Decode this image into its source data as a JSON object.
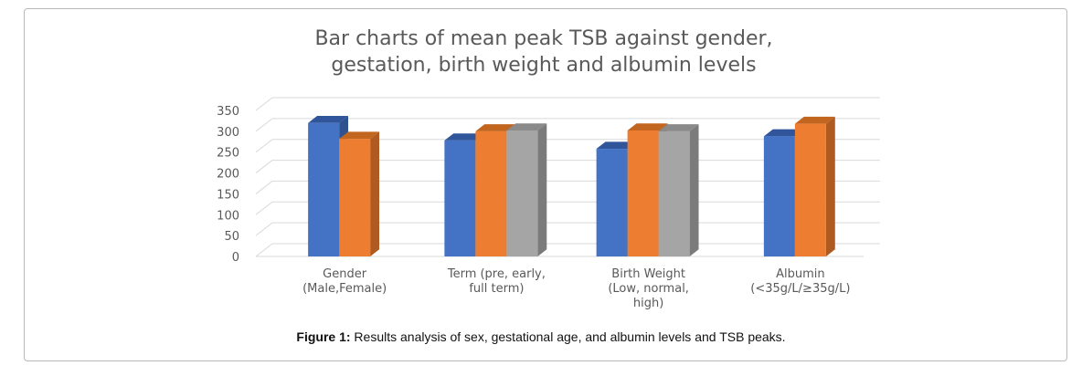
{
  "chart_data": {
    "type": "bar",
    "title_lines": [
      "Bar charts of mean peak TSB against gender,",
      "gestation, birth weight and albumin levels"
    ],
    "ylim": [
      0,
      350
    ],
    "yticks": [
      0,
      50,
      100,
      150,
      200,
      250,
      300,
      350
    ],
    "grid": true,
    "three_d": true,
    "groups": [
      {
        "label_lines": [
          "Gender",
          "(Male,Female)"
        ],
        "values": [
          320,
          282
        ]
      },
      {
        "label_lines": [
          "Term (pre, early,",
          "full term)"
        ],
        "values": [
          278,
          300,
          302
        ]
      },
      {
        "label_lines": [
          "Birth Weight",
          "(Low, normal,",
          "high)"
        ],
        "values": [
          258,
          302,
          300
        ]
      },
      {
        "label_lines": [
          "Albumin",
          "(<35g/L/≥35g/L)"
        ],
        "values": [
          288,
          318
        ]
      }
    ],
    "bar_colors": [
      "#4472c4",
      "#ed7d31",
      "#a5a5a5"
    ],
    "bar_side_colors": [
      "#2f528f",
      "#ae5a21",
      "#7b7b7b"
    ],
    "bar_top_colors": [
      "#30559b",
      "#c1651f",
      "#8a8a8a"
    ]
  },
  "caption": {
    "label": "Figure 1:",
    "text": " Results analysis of sex, gestational age, and albumin levels and TSB peaks."
  }
}
